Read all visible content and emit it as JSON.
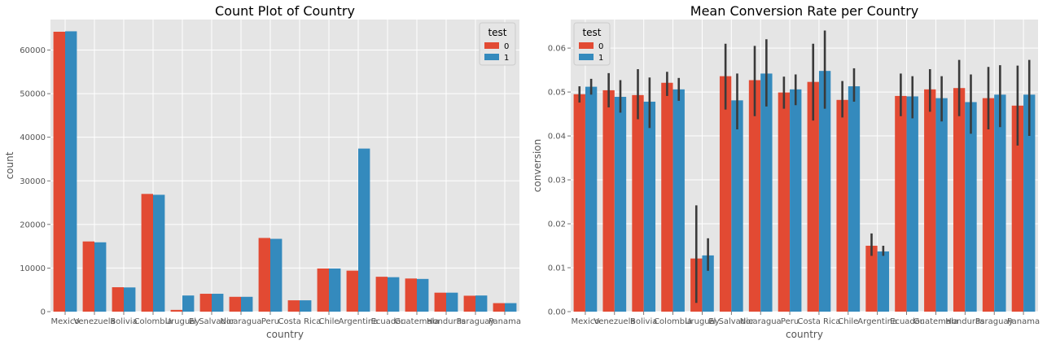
{
  "chart_data": [
    {
      "type": "bar",
      "title": "Count Plot of Country",
      "xlabel": "country",
      "ylabel": "count",
      "categories": [
        "Mexico",
        "Venezuela",
        "Bolivia",
        "Colombia",
        "Uruguay",
        "El Salvador",
        "Nicaragua",
        "Peru",
        "Costa Rica",
        "Chile",
        "Argentina",
        "Ecuador",
        "Guatemala",
        "Honduras",
        "Paraguay",
        "Panama"
      ],
      "ylim": [
        0,
        67000
      ],
      "yticks": [
        0,
        10000,
        20000,
        30000,
        40000,
        50000,
        60000
      ],
      "legend": {
        "title": "test",
        "position": "top-right"
      },
      "grid": true,
      "series": [
        {
          "name": "0",
          "color": "#E24A33",
          "values": [
            64200,
            16100,
            5600,
            27000,
            400,
            4100,
            3400,
            16900,
            2600,
            9900,
            9400,
            8000,
            7600,
            4350,
            3650,
            1950
          ]
        },
        {
          "name": "1",
          "color": "#348ABD",
          "values": [
            64300,
            15900,
            5550,
            26800,
            3700,
            4100,
            3400,
            16700,
            2600,
            9900,
            37400,
            7900,
            7500,
            4350,
            3700,
            1950
          ]
        }
      ]
    },
    {
      "type": "bar",
      "title": "Mean Conversion Rate per Country",
      "xlabel": "country",
      "ylabel": "conversion",
      "categories": [
        "Mexico",
        "Venezuela",
        "Bolivia",
        "Colombia",
        "Uruguay",
        "El Salvador",
        "Nicaragua",
        "Peru",
        "Costa Rica",
        "Chile",
        "Argentina",
        "Ecuador",
        "Guatemala",
        "Honduras",
        "Paraguay",
        "Panama"
      ],
      "ylim": [
        0,
        0.0665
      ],
      "yticks": [
        0.0,
        0.01,
        0.02,
        0.03,
        0.04,
        0.05,
        0.06
      ],
      "legend": {
        "title": "test",
        "position": "top-left"
      },
      "grid": true,
      "series": [
        {
          "name": "0",
          "color": "#E24A33",
          "values": [
            0.0495,
            0.0504,
            0.0493,
            0.0521,
            0.0121,
            0.0536,
            0.0527,
            0.0499,
            0.0523,
            0.0482,
            0.015,
            0.0491,
            0.0506,
            0.0509,
            0.0486,
            0.0469
          ],
          "ci_low": [
            0.0476,
            0.0465,
            0.0438,
            0.0491,
            0.002,
            0.046,
            0.0445,
            0.0462,
            0.0435,
            0.0442,
            0.0127,
            0.0445,
            0.0455,
            0.0445,
            0.0415,
            0.0378
          ],
          "ci_high": [
            0.0513,
            0.0543,
            0.0552,
            0.0546,
            0.0242,
            0.061,
            0.0605,
            0.0535,
            0.061,
            0.0525,
            0.0178,
            0.0542,
            0.0552,
            0.0573,
            0.0557,
            0.056
          ]
        },
        {
          "name": "1",
          "color": "#348ABD",
          "values": [
            0.0512,
            0.0489,
            0.0478,
            0.0506,
            0.0128,
            0.0481,
            0.0542,
            0.0506,
            0.0548,
            0.0513,
            0.0137,
            0.049,
            0.0486,
            0.0477,
            0.0494,
            0.0494
          ],
          "ci_low": [
            0.0494,
            0.0453,
            0.0418,
            0.048,
            0.0093,
            0.0415,
            0.0467,
            0.047,
            0.0462,
            0.0478,
            0.0127,
            0.044,
            0.0433,
            0.0405,
            0.042,
            0.04
          ],
          "ci_high": [
            0.053,
            0.0527,
            0.0533,
            0.0532,
            0.0167,
            0.0542,
            0.062,
            0.054,
            0.064,
            0.0554,
            0.015,
            0.0536,
            0.0536,
            0.054,
            0.0561,
            0.0573
          ]
        }
      ]
    }
  ]
}
